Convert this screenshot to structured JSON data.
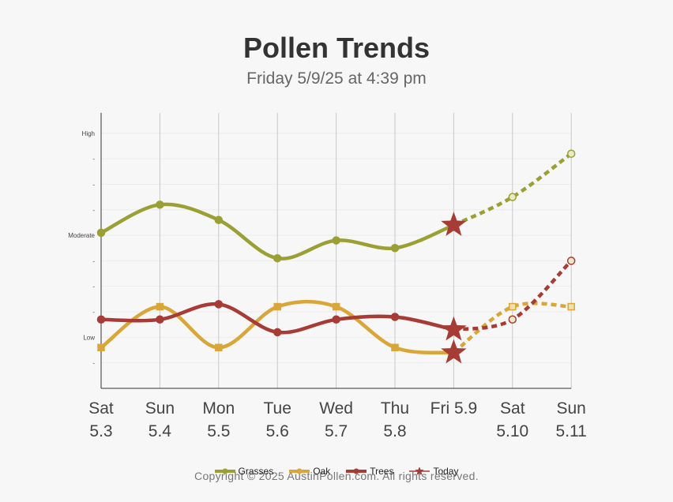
{
  "title": "Pollen Trends",
  "subtitle": "Friday 5/9/25 at 4:39 pm",
  "copyright": "Copyright © 2025 AustinPollen.com.  All rights reserved.",
  "chart_data": {
    "type": "line",
    "categories": [
      {
        "day": "Sat",
        "date": "5.3"
      },
      {
        "day": "Sun",
        "date": "5.4"
      },
      {
        "day": "Mon",
        "date": "5.5"
      },
      {
        "day": "Tue",
        "date": "5.6"
      },
      {
        "day": "Wed",
        "date": "5.7"
      },
      {
        "day": "Thu",
        "date": "5.8"
      },
      {
        "day": "Fri 5.9",
        "date": ""
      },
      {
        "day": "Sat",
        "date": "5.10"
      },
      {
        "day": "Sun",
        "date": "5.11"
      }
    ],
    "today_index": 6,
    "y_ticks": [
      {
        "value": 1,
        "label": "-"
      },
      {
        "value": 2,
        "label": "Low"
      },
      {
        "value": 3,
        "label": "-"
      },
      {
        "value": 4,
        "label": "-"
      },
      {
        "value": 5,
        "label": "-"
      },
      {
        "value": 6,
        "label": "Moderate"
      },
      {
        "value": 7,
        "label": "-"
      },
      {
        "value": 8,
        "label": "-"
      },
      {
        "value": 9,
        "label": "-"
      },
      {
        "value": 10,
        "label": "High"
      }
    ],
    "ylim": [
      0,
      10.8
    ],
    "series": [
      {
        "name": "Grasses",
        "color": "#9aa033",
        "marker": "circle",
        "values": [
          6.1,
          7.2,
          6.6,
          5.1,
          5.8,
          5.5,
          6.4,
          7.5,
          9.2
        ]
      },
      {
        "name": "Oak",
        "color": "#d9a63a",
        "marker": "square",
        "values": [
          1.6,
          3.2,
          1.6,
          3.2,
          3.2,
          1.6,
          1.4,
          3.2,
          3.2
        ]
      },
      {
        "name": "Trees",
        "color": "#a63c35",
        "marker": "circle",
        "values": [
          2.7,
          2.7,
          3.3,
          2.2,
          2.7,
          2.8,
          2.3,
          2.7,
          5.0
        ]
      }
    ],
    "legend": [
      {
        "name": "Grasses",
        "color": "#9aa033"
      },
      {
        "name": "Oak",
        "color": "#d9a63a"
      },
      {
        "name": "Trees",
        "color": "#a63c35"
      },
      {
        "name": "Today",
        "color": "#a63c35"
      }
    ],
    "legend_position": "bottom",
    "forecast_style": "dashed",
    "grid": true
  }
}
